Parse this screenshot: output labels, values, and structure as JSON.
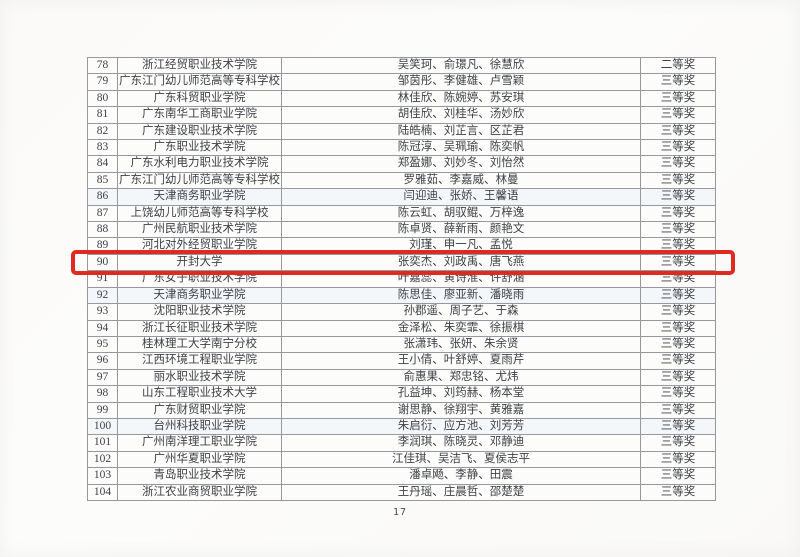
{
  "page": {
    "number": "17"
  },
  "colors": {
    "highlight_red": "#df2a22",
    "table_border_gray": "#96989e",
    "text_dark": "#3e4047"
  },
  "highlight": {
    "highlighted_row_no": "90",
    "shape": "red-rounded-rectangle"
  },
  "table": {
    "rows": [
      {
        "no": "78",
        "institution": "浙江经贸职业技术学院",
        "names": "吴笑珂、俞璟凡、徐慧欣",
        "award": "二等奖",
        "highlighted": false
      },
      {
        "no": "79",
        "institution": "广东江门幼儿师范高等专科学校",
        "names": "邹茵彤、李健雄、卢雪颖",
        "award": "三等奖",
        "highlighted": false
      },
      {
        "no": "80",
        "institution": "广东科贸职业学院",
        "names": "林佳欣、陈婉婷、苏安琪",
        "award": "三等奖",
        "highlighted": false
      },
      {
        "no": "81",
        "institution": "广东南华工商职业学院",
        "names": "胡佳欣、刘桂华、汤妙欣",
        "award": "三等奖",
        "highlighted": false
      },
      {
        "no": "82",
        "institution": "广东建设职业技术学院",
        "names": "陆皓楠、刘芷言、区芷君",
        "award": "三等奖",
        "highlighted": false
      },
      {
        "no": "83",
        "institution": "广东职业技术学院",
        "names": "陈冠淳、吴珮瑜、陈奕帆",
        "award": "三等奖",
        "highlighted": false
      },
      {
        "no": "84",
        "institution": "广东水利电力职业技术学院",
        "names": "郑盈娜、刘妙冬、刘怡然",
        "award": "三等奖",
        "highlighted": false
      },
      {
        "no": "85",
        "institution": "广东江门幼儿师范高等专科学校",
        "names": "罗雅茹、李嘉威、林曼",
        "award": "三等奖",
        "highlighted": false
      },
      {
        "no": "86",
        "institution": "天津商务职业学院",
        "names": "闫迎迪、张娇、王馨语",
        "award": "三等奖",
        "highlighted": false
      },
      {
        "no": "87",
        "institution": "上饶幼儿师范高等专科学校",
        "names": "陈云虹、胡驭鲲、万梓逸",
        "award": "三等奖",
        "highlighted": false
      },
      {
        "no": "88",
        "institution": "广州民航职业技术学院",
        "names": "陈卓贤、薛新雨、颜艳文",
        "award": "三等奖",
        "highlighted": false
      },
      {
        "no": "89",
        "institution": "河北对外经贸职业学院",
        "names": "刘瑾、申一凡、孟悦",
        "award": "三等奖",
        "highlighted": false
      },
      {
        "no": "90",
        "institution": "开封大学",
        "names": "张奕杰、刘政禹、唐飞燕",
        "award": "三等奖",
        "highlighted": true
      },
      {
        "no": "91",
        "institution": "广东女子职业技术学院",
        "names": "叶嘉蕊、黄诗淮、许舒涵",
        "award": "三等奖",
        "highlighted": false
      },
      {
        "no": "92",
        "institution": "天津商务职业学院",
        "names": "陈思佳、廖亚新、潘晓雨",
        "award": "三等奖",
        "highlighted": false
      },
      {
        "no": "93",
        "institution": "沈阳职业技术学院",
        "names": "孙郡遥、周子艺、于森",
        "award": "三等奖",
        "highlighted": false
      },
      {
        "no": "94",
        "institution": "浙江长征职业技术学院",
        "names": "金泽松、朱奕霏、徐振棋",
        "award": "三等奖",
        "highlighted": false
      },
      {
        "no": "95",
        "institution": "桂林理工大学南宁分校",
        "names": "张潇玮、张妍、朱余贤",
        "award": "三等奖",
        "highlighted": false
      },
      {
        "no": "96",
        "institution": "江西环境工程职业学院",
        "names": "王小倩、叶舒婷、夏雨芹",
        "award": "三等奖",
        "highlighted": false
      },
      {
        "no": "97",
        "institution": "丽水职业技术学院",
        "names": "俞惠果、郑忠铭、尤炜",
        "award": "三等奖",
        "highlighted": false
      },
      {
        "no": "98",
        "institution": "山东工程职业技术大学",
        "names": "孔益坤、刘筠赫、杨本堂",
        "award": "三等奖",
        "highlighted": false
      },
      {
        "no": "99",
        "institution": "广东财贸职业学院",
        "names": "谢思静、徐翔宇、黄雅嘉",
        "award": "三等奖",
        "highlighted": false
      },
      {
        "no": "100",
        "institution": "台州科技职业学院",
        "names": "朱启衍、应方池、刘芳芳",
        "award": "三等奖",
        "highlighted": false
      },
      {
        "no": "101",
        "institution": "广州南洋理工职业学院",
        "names": "李润琪、陈晓灵、邓静迪",
        "award": "三等奖",
        "highlighted": false
      },
      {
        "no": "102",
        "institution": "广州华夏职业学院",
        "names": "江佳琪、吴洁飞、夏侯志平",
        "award": "三等奖",
        "highlighted": false
      },
      {
        "no": "103",
        "institution": "青岛职业技术学院",
        "names": "潘卓飏、李静、田震",
        "award": "三等奖",
        "highlighted": false
      },
      {
        "no": "104",
        "institution": "浙江农业商贸职业学院",
        "names": "王丹瑶、庄晨哲、邵楚楚",
        "award": "三等奖",
        "highlighted": false
      }
    ]
  }
}
